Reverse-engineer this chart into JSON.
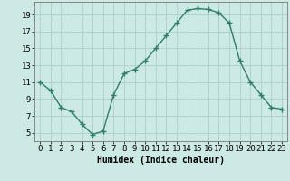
{
  "x": [
    0,
    1,
    2,
    3,
    4,
    5,
    6,
    7,
    8,
    9,
    10,
    11,
    12,
    13,
    14,
    15,
    16,
    17,
    18,
    19,
    20,
    21,
    22,
    23
  ],
  "y": [
    11,
    10,
    8,
    7.5,
    6,
    4.8,
    5.2,
    9.5,
    12,
    12.5,
    13.5,
    15,
    16.5,
    18,
    19.5,
    19.7,
    19.6,
    19.2,
    18,
    13.5,
    11,
    9.5,
    8,
    7.8
  ],
  "line_color": "#2e7d6e",
  "marker": "+",
  "bg_color": "#cce9e5",
  "grid_color": "#aacfcc",
  "xlabel": "Humidex (Indice chaleur)",
  "xlim": [
    -0.5,
    23.5
  ],
  "ylim": [
    4,
    20.5
  ],
  "yticks": [
    5,
    7,
    9,
    11,
    13,
    15,
    17,
    19
  ],
  "xticks": [
    0,
    1,
    2,
    3,
    4,
    5,
    6,
    7,
    8,
    9,
    10,
    11,
    12,
    13,
    14,
    15,
    16,
    17,
    18,
    19,
    20,
    21,
    22,
    23
  ],
  "xlabel_fontsize": 7,
  "tick_fontsize": 6.5,
  "line_width": 1.0,
  "marker_size": 4
}
